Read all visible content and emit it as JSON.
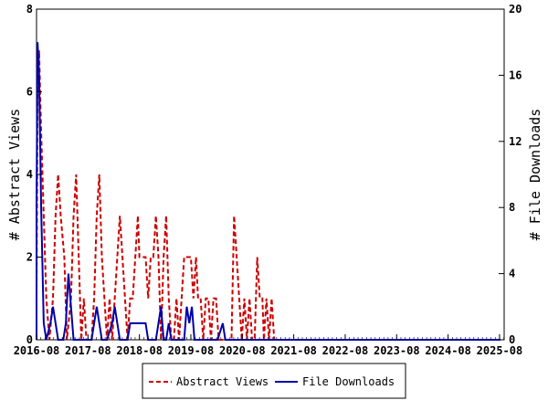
{
  "chart_data": {
    "type": "line",
    "title": "",
    "xlabel": "",
    "ylabel_left": "# Abstract Views",
    "ylabel_right": "# File Downloads",
    "xlim": [
      2016.58,
      2025.67
    ],
    "ylim_left": [
      0,
      8
    ],
    "ylim_right": [
      0,
      20
    ],
    "x_ticks": [
      {
        "value": 2016.58,
        "label": "2016-08"
      },
      {
        "value": 2017.58,
        "label": "2017-08"
      },
      {
        "value": 2018.58,
        "label": "2018-08"
      },
      {
        "value": 2019.58,
        "label": "2019-08"
      },
      {
        "value": 2020.58,
        "label": "2020-08"
      },
      {
        "value": 2021.58,
        "label": "2021-08"
      },
      {
        "value": 2022.58,
        "label": "2022-08"
      },
      {
        "value": 2023.58,
        "label": "2023-08"
      },
      {
        "value": 2024.58,
        "label": "2024-08"
      },
      {
        "value": 2025.58,
        "label": "2025-08"
      }
    ],
    "y_ticks_left": [
      "0",
      "2",
      "4",
      "6",
      "8"
    ],
    "y_ticks_right": [
      "0",
      "4",
      "8",
      "12",
      "16",
      "20"
    ],
    "grid": false,
    "legend_position": "bottom-center",
    "series": [
      {
        "name": "Abstract Views",
        "axis": "left",
        "color": "#cc0000",
        "style": "dashed",
        "points": [
          [
            2016.5,
            0
          ],
          [
            2016.55,
            1
          ],
          [
            2016.6,
            6
          ],
          [
            2016.63,
            7
          ],
          [
            2016.67,
            5
          ],
          [
            2016.72,
            3
          ],
          [
            2016.77,
            1
          ],
          [
            2016.83,
            0
          ],
          [
            2016.9,
            1
          ],
          [
            2016.95,
            3
          ],
          [
            2017.0,
            4
          ],
          [
            2017.05,
            3
          ],
          [
            2017.12,
            2
          ],
          [
            2017.17,
            0
          ],
          [
            2017.25,
            1
          ],
          [
            2017.3,
            3
          ],
          [
            2017.35,
            4
          ],
          [
            2017.4,
            2
          ],
          [
            2017.45,
            0
          ],
          [
            2017.5,
            1
          ],
          [
            2017.55,
            0
          ],
          [
            2017.6,
            0
          ],
          [
            2017.65,
            0
          ],
          [
            2017.7,
            1
          ],
          [
            2017.75,
            3
          ],
          [
            2017.8,
            4
          ],
          [
            2017.85,
            2
          ],
          [
            2017.9,
            1
          ],
          [
            2017.95,
            0
          ],
          [
            2018.0,
            1
          ],
          [
            2018.05,
            0
          ],
          [
            2018.1,
            1
          ],
          [
            2018.15,
            2
          ],
          [
            2018.2,
            3
          ],
          [
            2018.25,
            2
          ],
          [
            2018.3,
            1
          ],
          [
            2018.35,
            0
          ],
          [
            2018.4,
            1
          ],
          [
            2018.45,
            1
          ],
          [
            2018.5,
            2
          ],
          [
            2018.55,
            3
          ],
          [
            2018.58,
            2
          ],
          [
            2018.7,
            2
          ],
          [
            2018.75,
            1
          ],
          [
            2018.8,
            2
          ],
          [
            2018.85,
            2
          ],
          [
            2018.9,
            3
          ],
          [
            2018.95,
            2
          ],
          [
            2019.0,
            0
          ],
          [
            2019.05,
            2
          ],
          [
            2019.1,
            3
          ],
          [
            2019.15,
            1
          ],
          [
            2019.2,
            0
          ],
          [
            2019.25,
            0
          ],
          [
            2019.3,
            1
          ],
          [
            2019.35,
            0
          ],
          [
            2019.4,
            1
          ],
          [
            2019.45,
            2
          ],
          [
            2019.5,
            2
          ],
          [
            2019.58,
            2
          ],
          [
            2019.63,
            1
          ],
          [
            2019.68,
            2
          ],
          [
            2019.72,
            1
          ],
          [
            2019.77,
            1
          ],
          [
            2019.82,
            0
          ],
          [
            2019.87,
            1
          ],
          [
            2019.92,
            1
          ],
          [
            2019.97,
            0
          ],
          [
            2020.02,
            1
          ],
          [
            2020.07,
            1
          ],
          [
            2020.12,
            0
          ],
          [
            2020.2,
            0
          ],
          [
            2020.25,
            0
          ],
          [
            2020.3,
            0
          ],
          [
            2020.37,
            0
          ],
          [
            2020.42,
            3
          ],
          [
            2020.47,
            2
          ],
          [
            2020.52,
            1
          ],
          [
            2020.57,
            0
          ],
          [
            2020.62,
            1
          ],
          [
            2020.67,
            0
          ],
          [
            2020.72,
            1
          ],
          [
            2020.77,
            0
          ],
          [
            2020.82,
            0
          ],
          [
            2020.87,
            2
          ],
          [
            2020.92,
            1
          ],
          [
            2020.97,
            1
          ],
          [
            2021.0,
            0
          ],
          [
            2021.05,
            1
          ],
          [
            2021.1,
            0
          ],
          [
            2021.15,
            1
          ],
          [
            2021.2,
            0
          ],
          [
            2021.25,
            0
          ],
          [
            2021.3,
            0
          ],
          [
            2021.35,
            0
          ],
          [
            2021.4,
            0
          ],
          [
            2021.45,
            0
          ],
          [
            2021.5,
            0
          ],
          [
            2021.55,
            0
          ],
          [
            2021.6,
            0
          ],
          [
            2021.65,
            0
          ],
          [
            2021.7,
            0
          ],
          [
            2021.75,
            0
          ],
          [
            2021.8,
            0
          ],
          [
            2021.85,
            0
          ],
          [
            2021.9,
            0
          ],
          [
            2021.95,
            0
          ],
          [
            2022.0,
            0
          ],
          [
            2022.05,
            0
          ],
          [
            2022.1,
            0
          ],
          [
            2022.15,
            0
          ],
          [
            2022.2,
            0
          ],
          [
            2022.25,
            0
          ],
          [
            2022.3,
            0
          ],
          [
            2022.35,
            0
          ],
          [
            2022.4,
            0
          ],
          [
            2022.45,
            0
          ],
          [
            2022.5,
            0
          ],
          [
            2022.55,
            0
          ],
          [
            2022.6,
            0
          ],
          [
            2022.65,
            0
          ],
          [
            2022.7,
            0
          ],
          [
            2022.75,
            0
          ],
          [
            2022.8,
            0
          ],
          [
            2022.85,
            0
          ],
          [
            2022.9,
            0
          ],
          [
            2022.95,
            0
          ],
          [
            2023.0,
            0
          ],
          [
            2023.05,
            0
          ],
          [
            2023.1,
            0
          ],
          [
            2023.15,
            0
          ],
          [
            2023.2,
            0
          ],
          [
            2023.25,
            0
          ],
          [
            2023.3,
            0
          ],
          [
            2023.35,
            0
          ],
          [
            2023.4,
            0
          ],
          [
            2023.45,
            0
          ],
          [
            2023.5,
            0
          ],
          [
            2023.55,
            0
          ],
          [
            2023.6,
            0
          ],
          [
            2023.65,
            0
          ],
          [
            2023.7,
            0
          ],
          [
            2023.75,
            0
          ],
          [
            2023.8,
            0
          ],
          [
            2023.85,
            0
          ],
          [
            2023.9,
            0
          ],
          [
            2023.95,
            0
          ],
          [
            2024.0,
            0
          ],
          [
            2024.05,
            0
          ],
          [
            2024.1,
            0
          ],
          [
            2024.15,
            0
          ],
          [
            2024.2,
            0
          ],
          [
            2024.25,
            0
          ],
          [
            2024.3,
            0
          ],
          [
            2024.35,
            0
          ],
          [
            2024.4,
            0
          ],
          [
            2024.45,
            0
          ],
          [
            2024.5,
            0
          ],
          [
            2024.55,
            0
          ],
          [
            2024.6,
            0
          ],
          [
            2024.65,
            0
          ],
          [
            2024.7,
            0
          ],
          [
            2024.75,
            0
          ],
          [
            2024.8,
            0
          ],
          [
            2024.85,
            0
          ],
          [
            2024.9,
            0
          ],
          [
            2024.95,
            0
          ],
          [
            2025.0,
            0
          ],
          [
            2025.05,
            0
          ],
          [
            2025.1,
            0
          ],
          [
            2025.15,
            0
          ],
          [
            2025.2,
            0
          ],
          [
            2025.25,
            0
          ],
          [
            2025.3,
            0
          ],
          [
            2025.35,
            0
          ],
          [
            2025.4,
            0
          ],
          [
            2025.45,
            0
          ],
          [
            2025.5,
            0
          ],
          [
            2025.55,
            0
          ]
        ]
      },
      {
        "name": "File Downloads",
        "axis": "right",
        "color": "#0000aa",
        "style": "solid",
        "points": [
          [
            2016.5,
            0
          ],
          [
            2016.55,
            8
          ],
          [
            2016.6,
            18
          ],
          [
            2016.63,
            16
          ],
          [
            2016.67,
            8
          ],
          [
            2016.72,
            1
          ],
          [
            2016.77,
            0
          ],
          [
            2016.85,
            1
          ],
          [
            2016.9,
            2
          ],
          [
            2016.95,
            1
          ],
          [
            2017.0,
            0
          ],
          [
            2017.1,
            0
          ],
          [
            2017.15,
            1
          ],
          [
            2017.2,
            4
          ],
          [
            2017.25,
            2
          ],
          [
            2017.3,
            0
          ],
          [
            2017.4,
            0
          ],
          [
            2017.55,
            0
          ],
          [
            2017.65,
            0
          ],
          [
            2017.7,
            1
          ],
          [
            2017.75,
            2
          ],
          [
            2017.8,
            1
          ],
          [
            2017.85,
            0
          ],
          [
            2017.95,
            0
          ],
          [
            2018.05,
            1
          ],
          [
            2018.1,
            2
          ],
          [
            2018.15,
            1
          ],
          [
            2018.2,
            0
          ],
          [
            2018.35,
            0
          ],
          [
            2018.4,
            1
          ],
          [
            2018.6,
            1
          ],
          [
            2018.7,
            1
          ],
          [
            2018.75,
            0
          ],
          [
            2018.9,
            0
          ],
          [
            2019.0,
            2
          ],
          [
            2019.05,
            0
          ],
          [
            2019.1,
            0
          ],
          [
            2019.15,
            1
          ],
          [
            2019.2,
            0
          ],
          [
            2019.45,
            0
          ],
          [
            2019.5,
            2
          ],
          [
            2019.55,
            1
          ],
          [
            2019.6,
            2
          ],
          [
            2019.65,
            0
          ],
          [
            2019.85,
            0
          ],
          [
            2020.1,
            0
          ],
          [
            2020.2,
            1
          ],
          [
            2020.25,
            0
          ],
          [
            2020.45,
            0
          ],
          [
            2020.6,
            0
          ],
          [
            2020.7,
            0
          ],
          [
            2020.8,
            0
          ],
          [
            2020.9,
            0
          ],
          [
            2021.0,
            0
          ],
          [
            2021.1,
            0
          ],
          [
            2021.2,
            0
          ],
          [
            2021.3,
            0
          ],
          [
            2021.4,
            0
          ],
          [
            2021.5,
            0
          ],
          [
            2021.6,
            0
          ],
          [
            2021.7,
            0
          ],
          [
            2021.8,
            0
          ],
          [
            2021.9,
            0
          ],
          [
            2022.0,
            0
          ],
          [
            2022.1,
            0
          ],
          [
            2022.2,
            0
          ],
          [
            2022.3,
            0
          ],
          [
            2022.4,
            0
          ],
          [
            2022.5,
            0
          ],
          [
            2022.6,
            0
          ],
          [
            2022.7,
            0
          ],
          [
            2022.8,
            0
          ],
          [
            2022.9,
            0
          ],
          [
            2023.0,
            0
          ],
          [
            2023.1,
            0
          ],
          [
            2023.2,
            0
          ],
          [
            2023.3,
            0
          ],
          [
            2023.4,
            0
          ],
          [
            2023.5,
            0
          ],
          [
            2023.6,
            0
          ],
          [
            2023.7,
            0
          ],
          [
            2023.8,
            0
          ],
          [
            2023.9,
            0
          ],
          [
            2024.0,
            0
          ],
          [
            2024.1,
            0
          ],
          [
            2024.2,
            0
          ],
          [
            2024.3,
            0
          ],
          [
            2024.4,
            0
          ],
          [
            2024.5,
            0
          ],
          [
            2024.6,
            0
          ],
          [
            2024.7,
            0
          ],
          [
            2024.8,
            0
          ],
          [
            2024.9,
            0
          ],
          [
            2025.0,
            0
          ],
          [
            2025.1,
            0
          ],
          [
            2025.2,
            0
          ],
          [
            2025.3,
            0
          ],
          [
            2025.4,
            0
          ],
          [
            2025.5,
            0
          ],
          [
            2025.6,
            0
          ]
        ]
      }
    ]
  }
}
